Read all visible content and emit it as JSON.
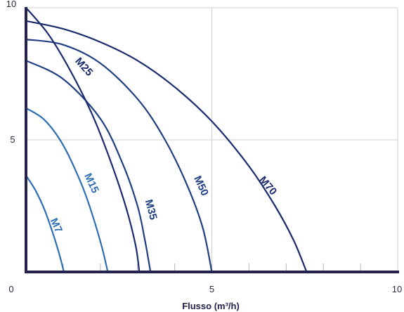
{
  "chart_data": {
    "type": "line",
    "title": "",
    "xlabel": "Flusso (m³/h)",
    "ylabel": "",
    "xlim": [
      0,
      10
    ],
    "ylim": [
      0,
      10
    ],
    "grid": true,
    "x_ticks": [
      "0",
      "5",
      "10"
    ],
    "y_ticks": [
      "5",
      "10"
    ],
    "series": [
      {
        "name": "M7",
        "color": "#2e6fb3",
        "x": [
          0,
          0.25,
          0.5,
          0.75,
          0.9,
          1.02
        ],
        "y": [
          3.65,
          3.1,
          2.35,
          1.35,
          0.65,
          0
        ]
      },
      {
        "name": "M15",
        "color": "#2e6fb3",
        "x": [
          0,
          0.5,
          1,
          1.5,
          1.8,
          2.05,
          2.2
        ],
        "y": [
          6.2,
          5.75,
          4.8,
          3.3,
          2.1,
          0.9,
          0
        ]
      },
      {
        "name": "M35",
        "color": "#1f3f82",
        "x": [
          0,
          1,
          2,
          2.6,
          3.0,
          3.2,
          3.35
        ],
        "y": [
          8.0,
          7.3,
          5.8,
          4.1,
          2.5,
          1.2,
          0
        ]
      },
      {
        "name": "M50",
        "color": "#1f3f82",
        "x": [
          0,
          1,
          2,
          3,
          3.7,
          4.3,
          4.75,
          5.0
        ],
        "y": [
          8.8,
          8.6,
          7.9,
          6.55,
          5.1,
          3.4,
          1.7,
          0
        ]
      },
      {
        "name": "M70",
        "color": "#1a2b6e",
        "x": [
          0,
          1,
          2,
          3,
          4,
          5,
          6,
          6.7,
          7.2,
          7.55
        ],
        "y": [
          9.5,
          9.2,
          8.7,
          8.0,
          7.0,
          5.7,
          4.0,
          2.5,
          1.2,
          0
        ]
      },
      {
        "name": "M25",
        "color": "#1a2b6e",
        "x": [
          0,
          0.6,
          1.2,
          1.8,
          2.3,
          2.7,
          2.95,
          3.05
        ],
        "y": [
          10,
          9.0,
          7.6,
          5.9,
          4.1,
          2.4,
          1.0,
          0
        ]
      }
    ],
    "label_positions_data": [
      {
        "name": "M7",
        "x": 0.8,
        "y": 1.75,
        "angle": 65
      },
      {
        "name": "M15",
        "x": 1.75,
        "y": 3.35,
        "angle": 65
      },
      {
        "name": "M35",
        "x": 3.35,
        "y": 2.35,
        "angle": 75
      },
      {
        "name": "M50",
        "x": 4.7,
        "y": 3.25,
        "angle": 65
      },
      {
        "name": "M70",
        "x": 6.5,
        "y": 3.25,
        "angle": 50
      },
      {
        "name": "M25",
        "x": 1.55,
        "y": 7.75,
        "angle": 48
      }
    ]
  }
}
